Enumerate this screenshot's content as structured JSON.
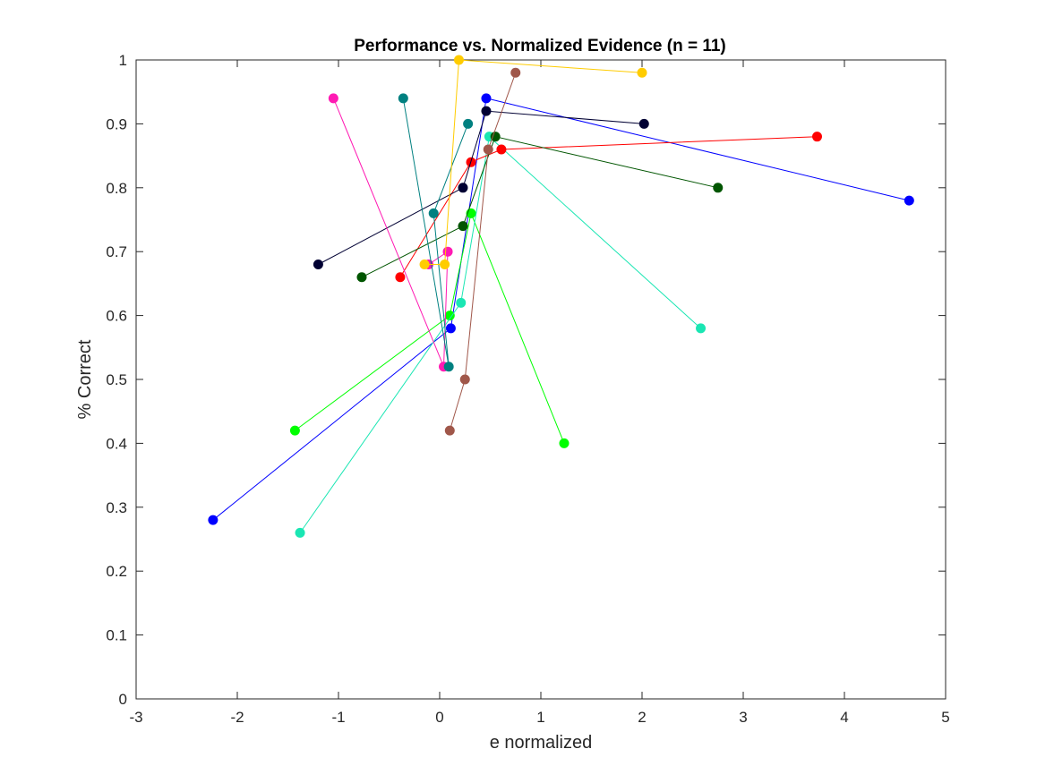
{
  "chart_data": {
    "type": "scatter",
    "title": "Performance vs. Normalized Evidence (n = 11)",
    "xlabel": "e normalized",
    "ylabel": "% Correct",
    "xlim": [
      -3,
      5
    ],
    "ylim": [
      0,
      1
    ],
    "xticks": [
      "-3",
      "-2",
      "-1",
      "0",
      "1",
      "2",
      "3",
      "4",
      "5"
    ],
    "yticks": [
      "0",
      "0.1",
      "0.2",
      "0.3",
      "0.4",
      "0.5",
      "0.6",
      "0.7",
      "0.8",
      "0.9",
      "1"
    ],
    "grid": false,
    "box": true,
    "series": [
      {
        "color": "#0000FF",
        "points": [
          [
            -2.24,
            0.28
          ],
          [
            0.11,
            0.58
          ],
          [
            0.46,
            0.94
          ],
          [
            4.64,
            0.78
          ]
        ]
      },
      {
        "color": "#00FF00",
        "points": [
          [
            -1.43,
            0.42
          ],
          [
            0.1,
            0.6
          ],
          [
            0.31,
            0.76
          ],
          [
            1.23,
            0.4
          ]
        ]
      },
      {
        "color": "#1AE6B3",
        "points": [
          [
            -1.38,
            0.26
          ],
          [
            0.21,
            0.62
          ],
          [
            0.49,
            0.88
          ],
          [
            2.58,
            0.58
          ]
        ]
      },
      {
        "color": "#FF0000",
        "points": [
          [
            -0.39,
            0.66
          ],
          [
            0.31,
            0.84
          ],
          [
            0.61,
            0.86
          ],
          [
            3.73,
            0.88
          ]
        ]
      },
      {
        "color": "#000033",
        "points": [
          [
            -1.2,
            0.68
          ],
          [
            0.23,
            0.8
          ],
          [
            0.46,
            0.92
          ],
          [
            2.02,
            0.9
          ]
        ]
      },
      {
        "color": "#005500",
        "points": [
          [
            -0.77,
            0.66
          ],
          [
            0.23,
            0.74
          ],
          [
            0.55,
            0.88
          ],
          [
            2.75,
            0.8
          ]
        ]
      },
      {
        "color": "#FF1AB3",
        "points": [
          [
            -1.05,
            0.94
          ],
          [
            0.04,
            0.52
          ],
          [
            0.08,
            0.7
          ],
          [
            -0.11,
            0.68
          ]
        ]
      },
      {
        "color": "#008080",
        "points": [
          [
            -0.36,
            0.94
          ],
          [
            0.09,
            0.52
          ],
          [
            -0.06,
            0.76
          ],
          [
            0.28,
            0.9
          ]
        ]
      },
      {
        "color": "#FFCC00",
        "points": [
          [
            -0.15,
            0.68
          ],
          [
            0.05,
            0.68
          ],
          [
            0.19,
            1.0
          ],
          [
            2.0,
            0.98
          ]
        ]
      },
      {
        "color": "#A0574A",
        "points": [
          [
            0.1,
            0.42
          ],
          [
            0.25,
            0.5
          ],
          [
            0.48,
            0.86
          ],
          [
            0.75,
            0.98
          ]
        ]
      }
    ]
  }
}
